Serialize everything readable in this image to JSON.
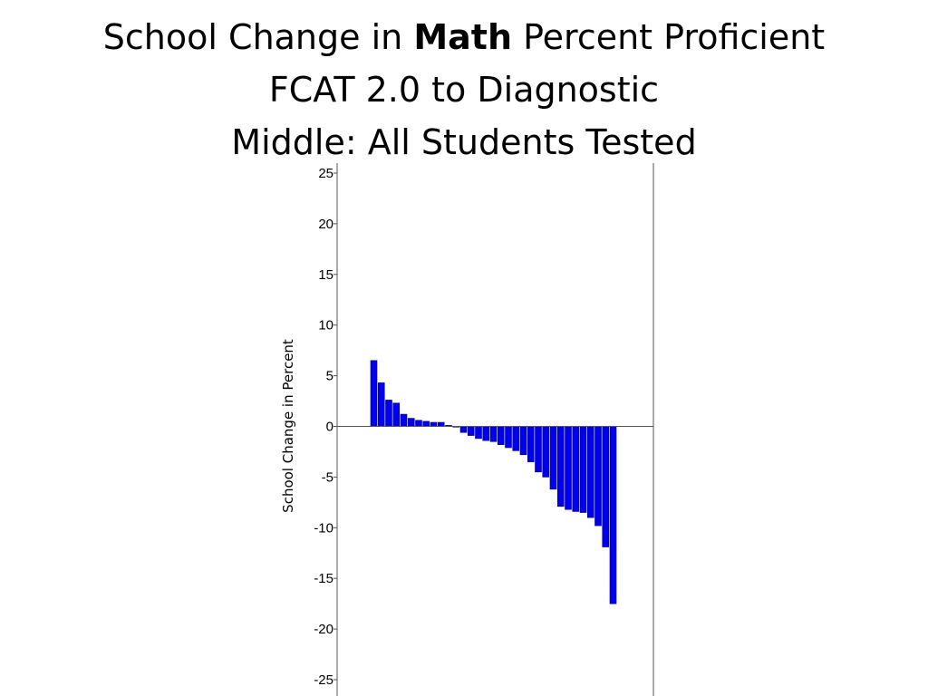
{
  "title": {
    "line1_a": "School Change in ",
    "line1_bold": "Math",
    "line1_b": " Percent Proficient",
    "line2": "FCAT 2.0 to Diagnostic",
    "line3": "Middle: All Students Tested"
  },
  "colors": {
    "bar": "#0000ee",
    "axis": "#555555"
  },
  "chart_data": {
    "type": "bar",
    "title": "School Change in Math Percent Proficient FCAT 2.0 to Diagnostic Middle: All Students Tested",
    "xlabel": "",
    "ylabel": "School Change in Percent",
    "ylim": [
      -25,
      25
    ],
    "yticks": [
      "25",
      "20",
      "15",
      "10",
      "5",
      "0",
      "-5",
      "-10",
      "-15",
      "-20",
      "-25"
    ],
    "grid": false,
    "values": [
      6.5,
      4.3,
      2.6,
      2.3,
      1.2,
      0.8,
      0.6,
      0.5,
      0.4,
      0.4,
      0.1,
      0.0,
      -0.6,
      -0.9,
      -1.2,
      -1.4,
      -1.5,
      -1.8,
      -2.1,
      -2.4,
      -2.8,
      -3.5,
      -4.5,
      -5.0,
      -6.2,
      -7.9,
      -8.2,
      -8.4,
      -8.5,
      -9.0,
      -9.8,
      -11.9,
      -17.5
    ]
  }
}
